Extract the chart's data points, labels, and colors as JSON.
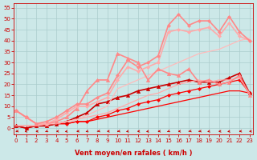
{
  "bg_color": "#cce8e8",
  "grid_color": "#aacccc",
  "xlabel": "Vent moyen/en rafales ( km/h )",
  "x_ticks": [
    0,
    1,
    2,
    3,
    4,
    5,
    6,
    7,
    8,
    9,
    10,
    11,
    12,
    13,
    14,
    15,
    16,
    17,
    18,
    19,
    20,
    21,
    22,
    23
  ],
  "y_ticks": [
    0,
    5,
    10,
    15,
    20,
    25,
    30,
    35,
    40,
    45,
    50,
    55
  ],
  "xlim": [
    -0.2,
    23.3
  ],
  "ylim": [
    -3,
    57
  ],
  "lines": [
    {
      "x": [
        0,
        1,
        2,
        3,
        4,
        5,
        6,
        7,
        8,
        9,
        10,
        11,
        12,
        13,
        14,
        15,
        16,
        17,
        18,
        19,
        20,
        21,
        22,
        23
      ],
      "y": [
        1,
        1,
        1,
        1,
        2,
        2,
        3,
        3,
        4,
        5,
        6,
        7,
        8,
        9,
        10,
        11,
        12,
        13,
        14,
        15,
        16,
        17,
        17,
        16
      ],
      "color": "#ff0000",
      "lw": 0.9,
      "marker": null
    },
    {
      "x": [
        0,
        1,
        2,
        3,
        4,
        5,
        6,
        7,
        8,
        9,
        10,
        11,
        12,
        13,
        14,
        15,
        16,
        17,
        18,
        19,
        20,
        21,
        22,
        23
      ],
      "y": [
        1,
        0,
        1,
        1,
        2,
        2,
        3,
        3,
        5,
        6,
        8,
        9,
        11,
        12,
        13,
        15,
        16,
        17,
        18,
        19,
        20,
        21,
        22,
        16
      ],
      "color": "#ff0000",
      "lw": 0.9,
      "marker": "D",
      "ms": 2.0
    },
    {
      "x": [
        0,
        1,
        2,
        3,
        4,
        5,
        6,
        7,
        8,
        9,
        10,
        11,
        12,
        13,
        14,
        15,
        16,
        17,
        18,
        19,
        20,
        21,
        22,
        23
      ],
      "y": [
        1,
        0,
        1,
        1,
        2,
        3,
        5,
        7,
        11,
        12,
        14,
        15,
        17,
        18,
        19,
        20,
        21,
        22,
        21,
        21,
        21,
        23,
        25,
        16
      ],
      "color": "#cc0000",
      "lw": 1.2,
      "marker": "^",
      "ms": 3.0
    },
    {
      "x": [
        0,
        1,
        2,
        3,
        4,
        5,
        6,
        7,
        8,
        9,
        10,
        11,
        12,
        13,
        14,
        15,
        16,
        17,
        18,
        19,
        20,
        21,
        22,
        23
      ],
      "y": [
        1,
        1,
        1,
        2,
        2,
        3,
        4,
        5,
        6,
        7,
        9,
        11,
        13,
        15,
        16,
        18,
        20,
        21,
        22,
        21,
        22,
        22,
        23,
        16
      ],
      "color": "#ffaaaa",
      "lw": 0.9,
      "marker": null
    },
    {
      "x": [
        0,
        1,
        2,
        3,
        4,
        5,
        6,
        7,
        8,
        9,
        10,
        11,
        12,
        13,
        14,
        15,
        16,
        17,
        18,
        19,
        20,
        21,
        22,
        23
      ],
      "y": [
        1,
        1,
        1,
        2,
        2,
        3,
        4,
        6,
        8,
        10,
        18,
        20,
        22,
        24,
        26,
        28,
        30,
        32,
        34,
        35,
        36,
        38,
        40,
        41
      ],
      "color": "#ffbbbb",
      "lw": 0.9,
      "marker": null
    },
    {
      "x": [
        0,
        1,
        2,
        3,
        4,
        5,
        6,
        7,
        8,
        9,
        10,
        11,
        12,
        13,
        14,
        15,
        16,
        17,
        18,
        19,
        20,
        21,
        22,
        23
      ],
      "y": [
        8,
        5,
        2,
        2,
        3,
        5,
        9,
        17,
        22,
        22,
        34,
        32,
        30,
        22,
        27,
        25,
        24,
        27,
        21,
        22,
        20,
        21,
        24,
        15
      ],
      "color": "#ff8888",
      "lw": 1.2,
      "marker": "^",
      "ms": 3.0
    },
    {
      "x": [
        0,
        1,
        2,
        3,
        4,
        5,
        6,
        7,
        8,
        9,
        10,
        11,
        12,
        13,
        14,
        15,
        16,
        17,
        18,
        19,
        20,
        21,
        22,
        23
      ],
      "y": [
        8,
        5,
        2,
        2,
        4,
        7,
        10,
        10,
        12,
        14,
        22,
        28,
        26,
        28,
        30,
        44,
        45,
        44,
        45,
        46,
        42,
        48,
        42,
        40
      ],
      "color": "#ffaaaa",
      "lw": 1.2,
      "marker": "D",
      "ms": 2.0
    },
    {
      "x": [
        0,
        1,
        2,
        3,
        4,
        5,
        6,
        7,
        8,
        9,
        10,
        11,
        12,
        13,
        14,
        15,
        16,
        17,
        18,
        19,
        20,
        21,
        22,
        23
      ],
      "y": [
        8,
        5,
        2,
        3,
        5,
        8,
        11,
        11,
        14,
        16,
        24,
        31,
        28,
        30,
        33,
        47,
        52,
        47,
        49,
        49,
        44,
        51,
        44,
        40
      ],
      "color": "#ff8888",
      "lw": 1.2,
      "marker": "D",
      "ms": 2.0
    }
  ],
  "tick_color": "#cc0000",
  "tick_fontsize": 5,
  "xlabel_fontsize": 6,
  "xlabel_color": "#cc0000",
  "spine_color": "#cc0000"
}
